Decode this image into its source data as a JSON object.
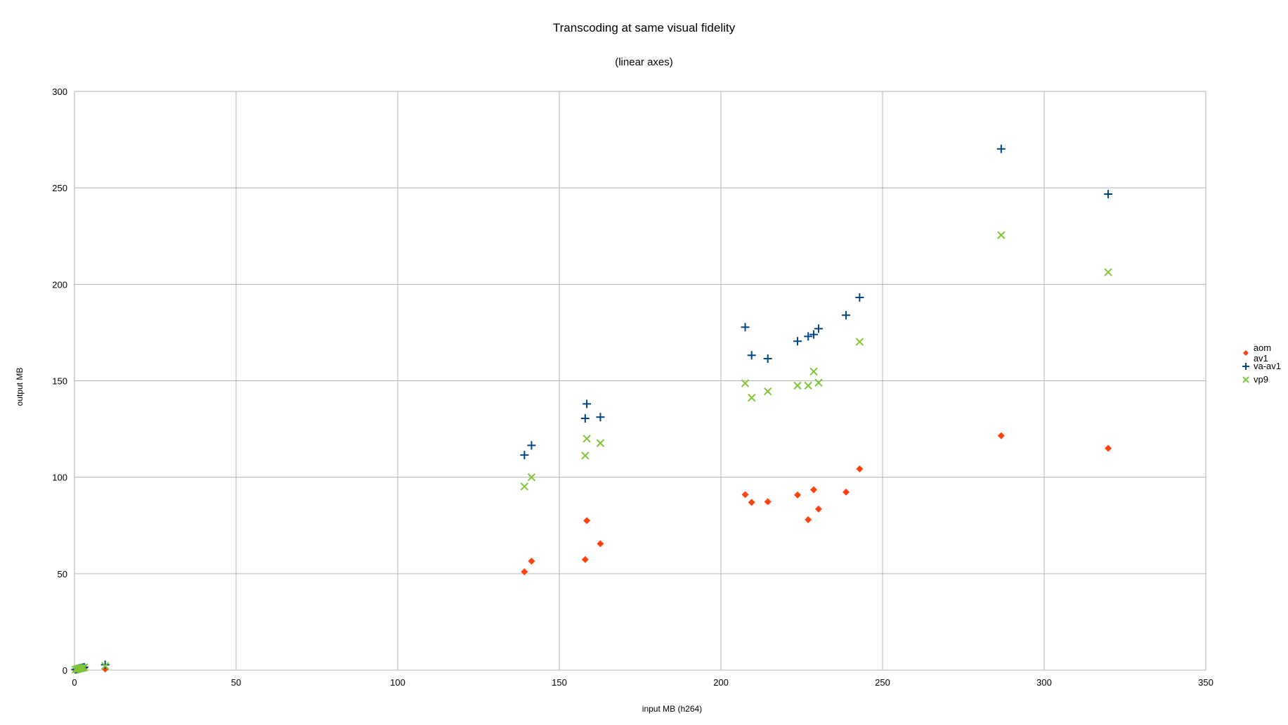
{
  "chart_data": {
    "type": "scatter",
    "title": "Transcoding at same visual fidelity",
    "subtitle": "(linear axes)",
    "xlabel": "input MB (h264)",
    "ylabel": "output MB",
    "xlim": [
      0,
      350
    ],
    "ylim": [
      0,
      300
    ],
    "xticks": [
      0,
      50,
      100,
      150,
      200,
      250,
      300,
      350
    ],
    "yticks": [
      0,
      50,
      100,
      150,
      200,
      250,
      300
    ],
    "grid": true,
    "legend_position": "right",
    "series": [
      {
        "name": "aom av1",
        "color": "#ff420e",
        "marker": "diamond",
        "points": [
          [
            0.3,
            0.1
          ],
          [
            0.8,
            0.3
          ],
          [
            1.2,
            0.4
          ],
          [
            1.6,
            0.5
          ],
          [
            2.0,
            0.6
          ],
          [
            2.5,
            0.8
          ],
          [
            3.0,
            0.9
          ],
          [
            9.5,
            0.6
          ],
          [
            139.2,
            51
          ],
          [
            141.4,
            56.5
          ],
          [
            158.0,
            57.3
          ],
          [
            158.5,
            77.5
          ],
          [
            162.7,
            65.5
          ],
          [
            207.5,
            91
          ],
          [
            209.5,
            87
          ],
          [
            214.5,
            87.3
          ],
          [
            223.7,
            90.8
          ],
          [
            227.0,
            78
          ],
          [
            228.7,
            93.5
          ],
          [
            230.2,
            83.5
          ],
          [
            238.7,
            92.3
          ],
          [
            242.9,
            104.3
          ],
          [
            286.7,
            121.5
          ],
          [
            319.8,
            115
          ]
        ]
      },
      {
        "name": "va-av1",
        "color": "#004586",
        "marker": "plus",
        "points": [
          [
            0.3,
            0.3
          ],
          [
            0.8,
            0.6
          ],
          [
            1.2,
            0.8
          ],
          [
            1.6,
            1.0
          ],
          [
            2.0,
            1.1
          ],
          [
            2.5,
            1.3
          ],
          [
            3.0,
            1.5
          ],
          [
            9.5,
            2.8
          ],
          [
            139.2,
            111.5
          ],
          [
            141.4,
            116.5
          ],
          [
            158.0,
            130.5
          ],
          [
            158.5,
            138
          ],
          [
            162.7,
            131.2
          ],
          [
            207.5,
            177.8
          ],
          [
            209.5,
            163.2
          ],
          [
            214.5,
            161.5
          ],
          [
            223.7,
            170.5
          ],
          [
            227.0,
            173
          ],
          [
            228.7,
            174
          ],
          [
            230.2,
            177
          ],
          [
            238.7,
            184
          ],
          [
            242.9,
            193.2
          ],
          [
            286.7,
            270.2
          ],
          [
            319.8,
            246.8
          ]
        ]
      },
      {
        "name": "vp9",
        "color": "#7ec636",
        "marker": "x",
        "points": [
          [
            0.3,
            0.2
          ],
          [
            0.8,
            0.5
          ],
          [
            1.2,
            0.7
          ],
          [
            1.6,
            0.9
          ],
          [
            2.0,
            1.0
          ],
          [
            2.5,
            1.2
          ],
          [
            3.0,
            1.4
          ],
          [
            9.5,
            2.2
          ],
          [
            139.2,
            95.2
          ],
          [
            141.4,
            100
          ],
          [
            158.0,
            111.2
          ],
          [
            158.5,
            120
          ],
          [
            162.7,
            117.7
          ],
          [
            207.5,
            148.7
          ],
          [
            209.5,
            141.2
          ],
          [
            214.5,
            144.5
          ],
          [
            223.7,
            147.5
          ],
          [
            227.0,
            147.5
          ],
          [
            228.7,
            154.8
          ],
          [
            230.2,
            149
          ],
          [
            242.9,
            170.2
          ],
          [
            286.7,
            225.5
          ],
          [
            319.8,
            206.3
          ]
        ]
      }
    ]
  }
}
